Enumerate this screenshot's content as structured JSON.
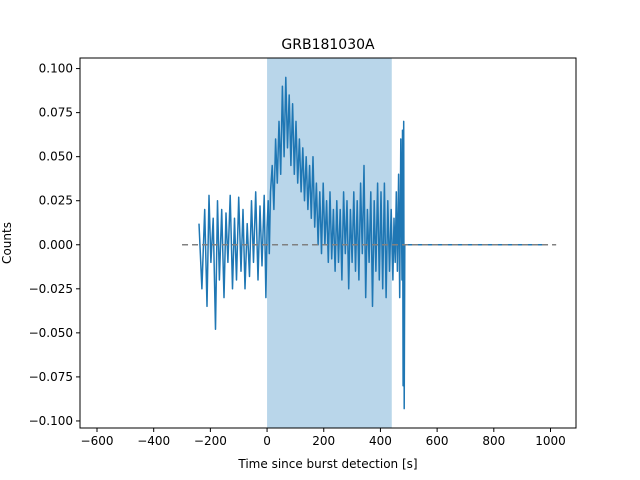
{
  "chart_data": {
    "type": "line",
    "title": "GRB181030A",
    "xlabel": "Time since burst detection [s]",
    "ylabel": "Counts",
    "xlim": [
      -660,
      1090
    ],
    "ylim": [
      -0.104,
      0.106
    ],
    "x_ticks": [
      -600,
      -400,
      -200,
      0,
      200,
      400,
      600,
      800,
      1000
    ],
    "y_ticks": [
      -0.1,
      -0.075,
      -0.05,
      -0.025,
      0.0,
      0.025,
      0.05,
      0.075,
      0.1
    ],
    "x_tick_labels": [
      "−600",
      "−400",
      "−200",
      "0",
      "200",
      "400",
      "600",
      "800",
      "1000"
    ],
    "y_tick_labels": [
      "−0.100",
      "−0.075",
      "−0.050",
      "−0.025",
      "0.000",
      "0.025",
      "0.050",
      "0.075",
      "0.100"
    ],
    "grid": false,
    "shaded_region": {
      "x_start": 0,
      "x_end": 440,
      "color": "#b9d6ea"
    },
    "reference_line": {
      "y": 0.0,
      "x_start": -300,
      "x_end": 1020,
      "style": "dashed",
      "color": "#808080"
    },
    "series": [
      {
        "color": "#1f77b4",
        "points": [
          [
            -240,
            0.012
          ],
          [
            -230,
            -0.025
          ],
          [
            -220,
            0.02
          ],
          [
            -212,
            -0.035
          ],
          [
            -205,
            0.028
          ],
          [
            -198,
            -0.01
          ],
          [
            -190,
            0.015
          ],
          [
            -182,
            -0.048
          ],
          [
            -175,
            0.025
          ],
          [
            -168,
            -0.02
          ],
          [
            -160,
            0.02
          ],
          [
            -152,
            -0.03
          ],
          [
            -145,
            0.018
          ],
          [
            -138,
            -0.01
          ],
          [
            -130,
            0.028
          ],
          [
            -122,
            -0.025
          ],
          [
            -115,
            0.015
          ],
          [
            -108,
            -0.02
          ],
          [
            -100,
            0.027
          ],
          [
            -92,
            -0.015
          ],
          [
            -85,
            0.02
          ],
          [
            -78,
            -0.025
          ],
          [
            -70,
            0.012
          ],
          [
            -62,
            -0.018
          ],
          [
            -55,
            0.025
          ],
          [
            -48,
            -0.01
          ],
          [
            -40,
            0.03
          ],
          [
            -32,
            -0.02
          ],
          [
            -25,
            0.022
          ],
          [
            -18,
            -0.012
          ],
          [
            -10,
            0.028
          ],
          [
            -4,
            -0.03
          ],
          [
            0,
            0.01
          ],
          [
            4,
            0.025
          ],
          [
            8,
            -0.005
          ],
          [
            12,
            0.03
          ],
          [
            18,
            0.045
          ],
          [
            24,
            0.02
          ],
          [
            30,
            0.06
          ],
          [
            36,
            0.035
          ],
          [
            42,
            0.07
          ],
          [
            48,
            0.04
          ],
          [
            54,
            0.09
          ],
          [
            60,
            0.05
          ],
          [
            66,
            0.095
          ],
          [
            72,
            0.055
          ],
          [
            78,
            0.085
          ],
          [
            84,
            0.045
          ],
          [
            90,
            0.08
          ],
          [
            96,
            0.04
          ],
          [
            102,
            0.07
          ],
          [
            108,
            0.035
          ],
          [
            114,
            0.06
          ],
          [
            120,
            0.03
          ],
          [
            126,
            0.055
          ],
          [
            132,
            0.025
          ],
          [
            138,
            0.05
          ],
          [
            144,
            0.02
          ],
          [
            150,
            0.045
          ],
          [
            156,
            0.015
          ],
          [
            162,
            0.05
          ],
          [
            168,
            0.01
          ],
          [
            174,
            0.035
          ],
          [
            180,
            0.0
          ],
          [
            186,
            0.03
          ],
          [
            192,
            -0.005
          ],
          [
            198,
            0.035
          ],
          [
            204,
            0.0
          ],
          [
            210,
            0.025
          ],
          [
            216,
            -0.01
          ],
          [
            222,
            0.03
          ],
          [
            228,
            -0.008
          ],
          [
            234,
            0.02
          ],
          [
            240,
            -0.015
          ],
          [
            246,
            0.025
          ],
          [
            252,
            -0.01
          ],
          [
            258,
            0.02
          ],
          [
            264,
            -0.02
          ],
          [
            270,
            0.03
          ],
          [
            276,
            -0.005
          ],
          [
            282,
            0.025
          ],
          [
            288,
            -0.025
          ],
          [
            294,
            0.02
          ],
          [
            300,
            -0.01
          ],
          [
            306,
            0.03
          ],
          [
            312,
            -0.015
          ],
          [
            318,
            0.025
          ],
          [
            324,
            -0.02
          ],
          [
            330,
            0.035
          ],
          [
            336,
            -0.005
          ],
          [
            342,
            0.045
          ],
          [
            348,
            -0.03
          ],
          [
            354,
            0.02
          ],
          [
            360,
            -0.01
          ],
          [
            366,
            0.03
          ],
          [
            372,
            -0.035
          ],
          [
            378,
            0.025
          ],
          [
            384,
            -0.015
          ],
          [
            390,
            0.035
          ],
          [
            396,
            -0.02
          ],
          [
            402,
            0.03
          ],
          [
            408,
            -0.025
          ],
          [
            414,
            0.035
          ],
          [
            420,
            -0.03
          ],
          [
            426,
            0.025
          ],
          [
            432,
            -0.015
          ],
          [
            438,
            0.02
          ],
          [
            444,
            -0.02
          ],
          [
            448,
            0.015
          ],
          [
            452,
            -0.01
          ],
          [
            456,
            0.03
          ],
          [
            460,
            -0.015
          ],
          [
            464,
            0.04
          ],
          [
            468,
            -0.03
          ],
          [
            472,
            0.06
          ],
          [
            476,
            -0.02
          ],
          [
            478,
            0.065
          ],
          [
            480,
            -0.08
          ],
          [
            482,
            0.07
          ],
          [
            484,
            -0.093
          ],
          [
            486,
            0.0
          ],
          [
            500,
            0.0
          ],
          [
            980,
            0.0
          ]
        ]
      }
    ]
  }
}
